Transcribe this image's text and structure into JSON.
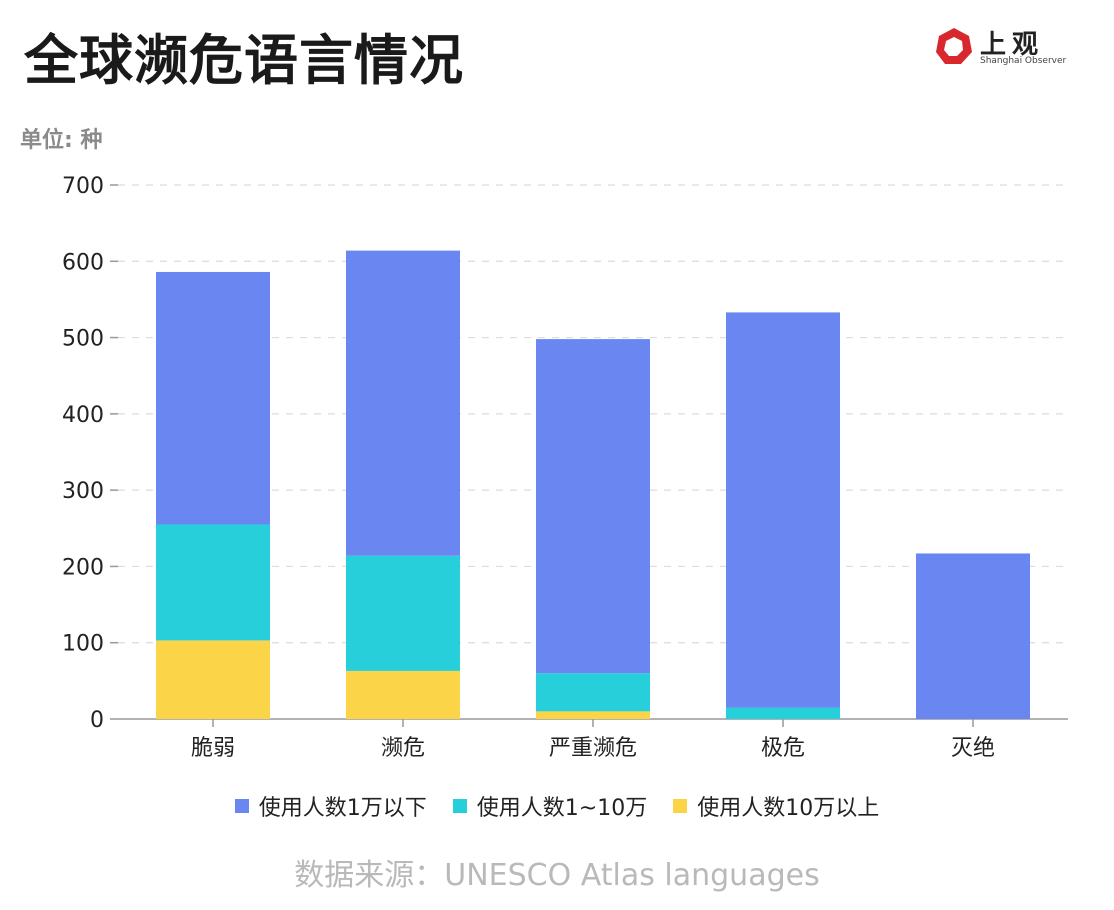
{
  "header": {
    "title": "全球濒危语言情况",
    "logo_text": "上观",
    "logo_sub": "Shanghai Observer"
  },
  "colors": {
    "under_10k": "#6a86f0",
    "10k_100k": "#27cfdb",
    "over_100k": "#fcd448",
    "grid": "#dcdcdc",
    "axis": "#999999",
    "logo_red": "#d8282d"
  },
  "chart_data": {
    "type": "bar",
    "stacked": true,
    "unit_label": "单位: 种",
    "categories": [
      "脆弱",
      "濒危",
      "严重濒危",
      "极危",
      "灭绝"
    ],
    "series": [
      {
        "name": "使用人数10万以上",
        "color_key": "over_100k",
        "values": [
          103,
          63,
          10,
          0,
          0
        ]
      },
      {
        "name": "使用人数1~10万",
        "color_key": "10k_100k",
        "values": [
          152,
          151,
          50,
          15,
          0
        ]
      },
      {
        "name": "使用人数1万以下",
        "color_key": "under_10k",
        "values": [
          331,
          400,
          438,
          518,
          217
        ]
      }
    ],
    "yticks": [
      0,
      100,
      200,
      300,
      400,
      500,
      600,
      700
    ],
    "ylim": [
      0,
      700
    ],
    "grid": true,
    "legend_position": "bottom",
    "legend_order": [
      "使用人数1万以下",
      "使用人数1~10万",
      "使用人数10万以上"
    ]
  },
  "footer": {
    "source": "数据来源：UNESCO Atlas languages"
  }
}
